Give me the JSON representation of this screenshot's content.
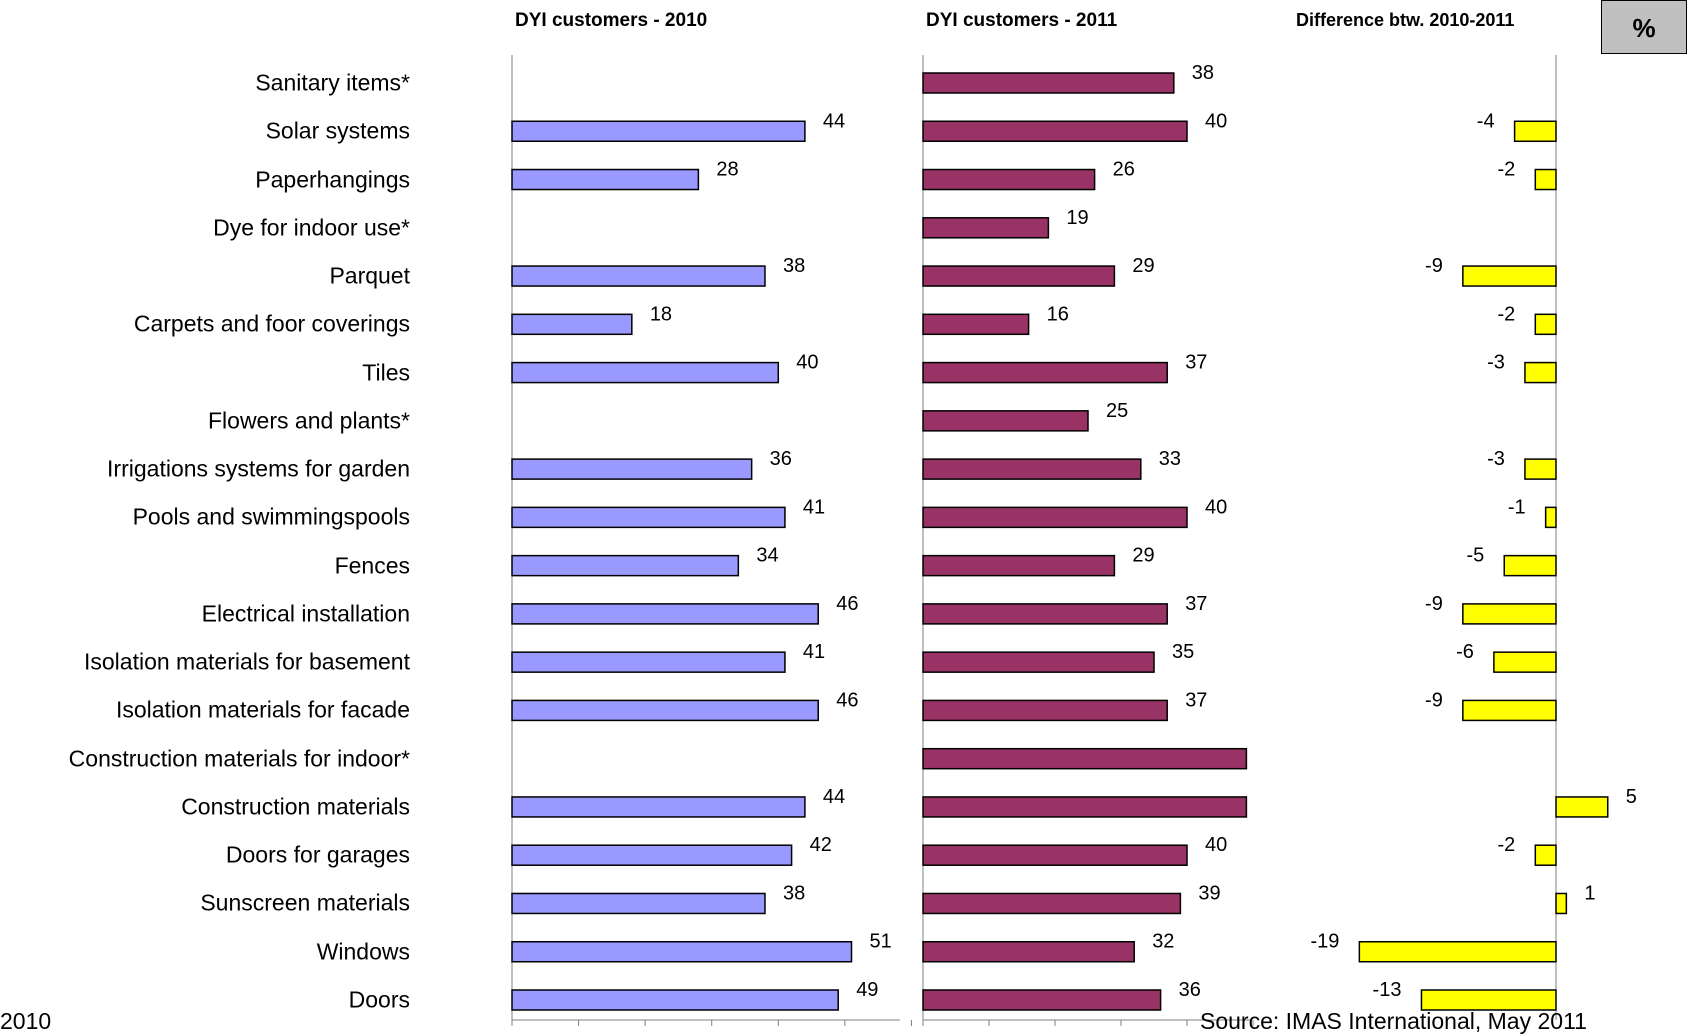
{
  "percent_box": "%",
  "chart_data": {
    "type": "bar",
    "orientation": "horizontal",
    "categories": [
      "Sanitary items*",
      "Solar systems",
      "Paperhangings",
      "Dye for indoor use*",
      "Parquet",
      "Carpets and foor coverings",
      "Tiles",
      "Flowers and plants*",
      "Irrigations systems for garden",
      "Pools and swimmingspools",
      "Fences",
      "Electrical installation",
      "Isolation materials for basement",
      "Isolation materials for facade",
      "Construction materials for indoor*",
      "Construction materials",
      "Doors for garages",
      "Sunscreen materials",
      "Windows",
      "Doors"
    ],
    "panels": [
      {
        "title": "DYI customers - 2010",
        "color": "#9999ff",
        "xlim": [
          0,
          60
        ],
        "values": [
          null,
          44,
          28,
          null,
          38,
          18,
          40,
          null,
          36,
          41,
          34,
          46,
          41,
          46,
          null,
          44,
          42,
          38,
          51,
          49
        ],
        "labels": [
          "",
          "44",
          "28",
          "",
          "38",
          "18",
          "40",
          "",
          "36",
          "41",
          "34",
          "46",
          "41",
          "46",
          "",
          "44",
          "42",
          "38",
          "51",
          "49"
        ]
      },
      {
        "title": "DYI customers - 2011",
        "color": "#993366",
        "xlim": [
          0,
          50
        ],
        "values": [
          38,
          40,
          26,
          19,
          29,
          16,
          37,
          25,
          33,
          40,
          29,
          37,
          35,
          37,
          49,
          49,
          40,
          39,
          32,
          36
        ],
        "labels": [
          "38",
          "40",
          "26",
          "19",
          "29",
          "16",
          "37",
          "25",
          "33",
          "40",
          "29",
          "37",
          "35",
          "37",
          "",
          "",
          "40",
          "39",
          "32",
          "36"
        ]
      },
      {
        "title": "Difference btw. 2010-2011",
        "color": "#ffff00",
        "xlim": [
          -38,
          20
        ],
        "values": [
          null,
          -4,
          -2,
          null,
          -9,
          -2,
          -3,
          null,
          -3,
          -1,
          -5,
          -9,
          -6,
          -9,
          null,
          5,
          -2,
          1,
          -19,
          -13
        ],
        "labels": [
          "",
          "-4",
          "-2",
          "",
          "-9",
          "-2",
          "-3",
          "",
          "-3",
          "-1",
          "-5",
          "-9",
          "-6",
          "-9",
          "",
          "5",
          "-2",
          "1",
          "-19",
          "-13"
        ]
      }
    ],
    "bottom_text": [
      "2010",
      "Source: IMAS International, May 2011"
    ]
  }
}
